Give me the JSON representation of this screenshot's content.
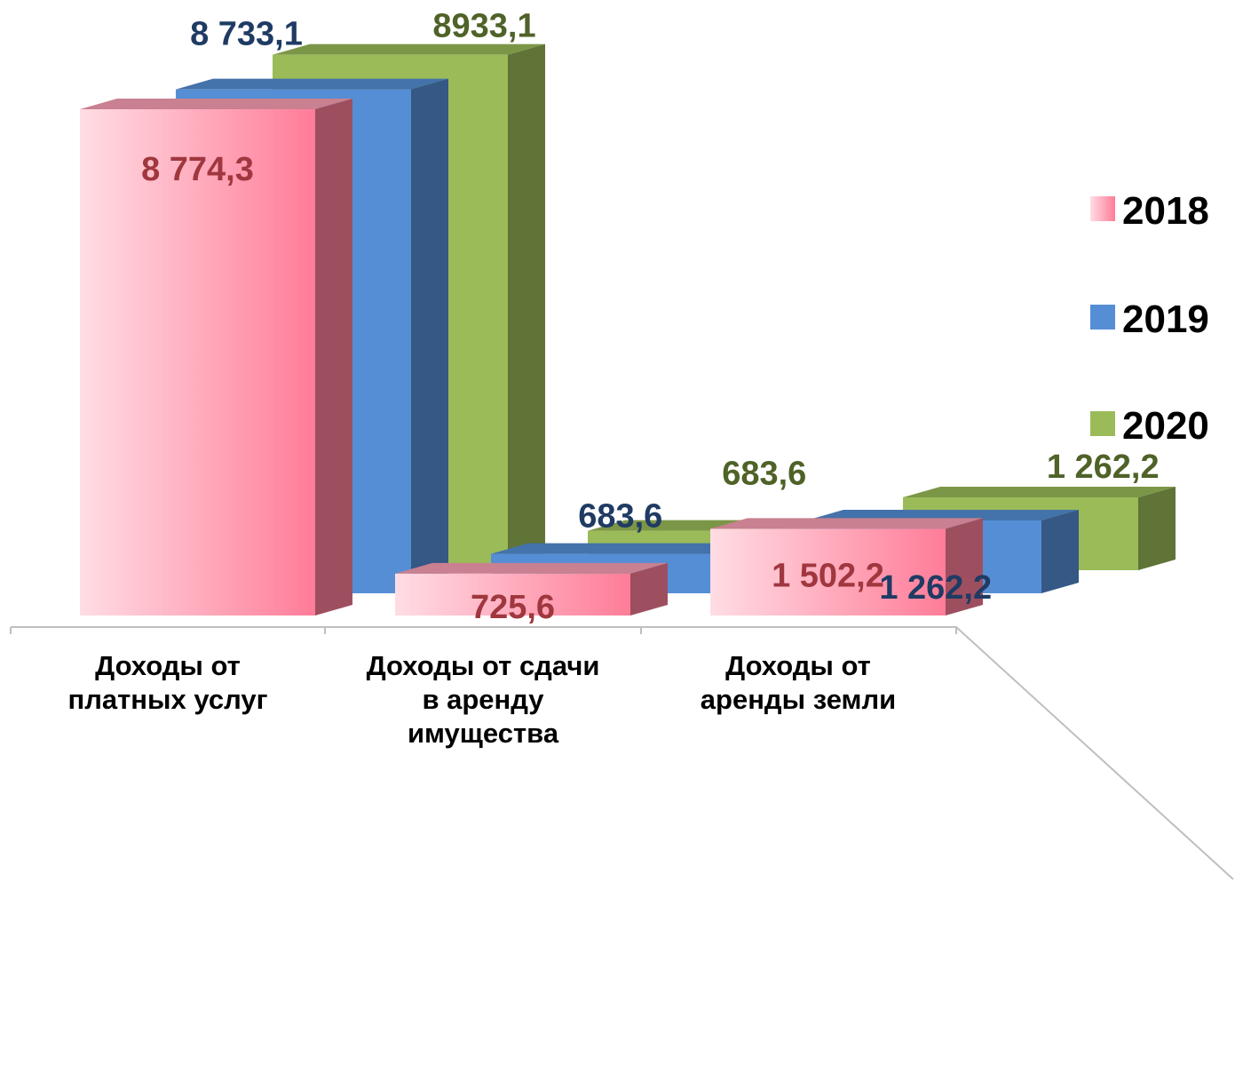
{
  "chart_data": {
    "type": "bar",
    "categories": [
      [
        "Доходы от",
        "платных услуг"
      ],
      [
        "Доходы от сдачи",
        "в аренду",
        "имущества"
      ],
      [
        "Доходы от",
        "аренды земли"
      ]
    ],
    "series": [
      {
        "name": "2018",
        "values": [
          8774.3,
          725.6,
          1502.2
        ],
        "labels": [
          "8 774,3",
          "725,6",
          "1 502,2"
        ],
        "color": "#ff7f9a",
        "label_color": "#a0373e"
      },
      {
        "name": "2019",
        "values": [
          8733.1,
          683.6,
          1262.2
        ],
        "labels": [
          "8 733,1",
          "683,6",
          "1 262,2"
        ],
        "color": "#558ed5",
        "label_color": "#1f3b64"
      },
      {
        "name": "2020",
        "values": [
          8933.1,
          683.6,
          1262.2
        ],
        "labels": [
          "8933,1",
          "683,6",
          "1 262,2"
        ],
        "color": "#9bbb59",
        "label_color": "#4f6228"
      }
    ],
    "legend_position": "right",
    "grid": false,
    "three_d": true
  }
}
